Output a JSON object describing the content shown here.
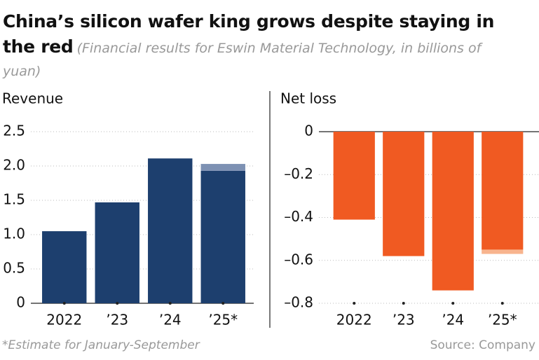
{
  "title": "China’s silicon wafer king grows despite staying in the red",
  "subtitle": "(Financial results for Eswin Material Technology, in billions of yuan)",
  "footnote": "*Estimate for January-September",
  "source": "Source: Company",
  "chart_data": [
    {
      "type": "bar",
      "title": "Revenue",
      "categories": [
        "2022",
        "’23",
        "’24",
        "’25*"
      ],
      "series": [
        {
          "color": "#1d3f6e",
          "values": [
            1.05,
            1.47,
            2.11,
            1.93
          ]
        },
        {
          "color": "#7d91b3",
          "values": [
            null,
            null,
            null,
            0.1
          ]
        }
      ],
      "ylim": [
        0,
        2.5
      ],
      "yticks": [
        0,
        0.5,
        {
          "value": 1,
          "label": "1.0"
        },
        1.5,
        {
          "value": 2,
          "label": "2.0"
        },
        2.5
      ],
      "grid": true
    },
    {
      "type": "bar",
      "title": "Net loss",
      "categories": [
        "2022",
        "’23",
        "’24",
        "’25*"
      ],
      "series": [
        {
          "color": "#f05a22",
          "values": [
            -0.41,
            -0.58,
            -0.74,
            -0.55
          ]
        },
        {
          "color": "#f8b48e",
          "values": [
            null,
            null,
            null,
            -0.02
          ]
        }
      ],
      "ylim": [
        -0.8,
        0
      ],
      "yticks": [
        {
          "value": -0.8,
          "label": "–0.8"
        },
        {
          "value": -0.6,
          "label": "–0.6"
        },
        {
          "value": -0.4,
          "label": "–0.4"
        },
        {
          "value": -0.2,
          "label": "–0.2"
        },
        0
      ],
      "grid": true
    }
  ]
}
